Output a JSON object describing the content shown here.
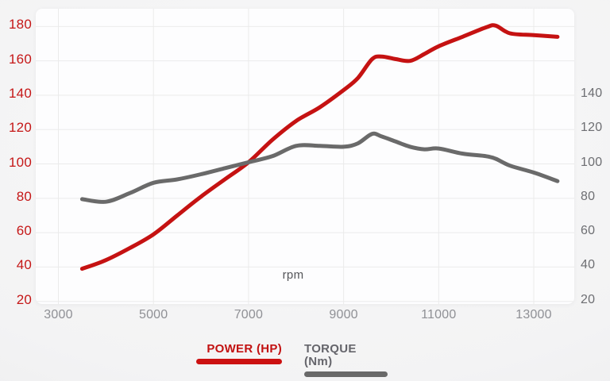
{
  "chart_data": {
    "type": "line",
    "title": "",
    "xlabel": "rpm",
    "grid": true,
    "legend_position": "bottom",
    "x_ticks": [
      3000,
      5000,
      7000,
      9000,
      11000,
      13000
    ],
    "left_axis": {
      "ticks": [
        180,
        160,
        140,
        120,
        100,
        80,
        60,
        40,
        20
      ],
      "color": "#c51717"
    },
    "right_axis": {
      "ticks": [
        140,
        120,
        100,
        80,
        60,
        40,
        20
      ],
      "color": "#6d6e72"
    },
    "xlim": [
      2520,
      13850
    ],
    "ylim": [
      18.5,
      190
    ],
    "x": [
      3500,
      4000,
      4500,
      5000,
      5500,
      6000,
      6500,
      7000,
      7500,
      8000,
      8500,
      9000,
      9300,
      9600,
      9800,
      10100,
      10400,
      10700,
      11000,
      11500,
      12000,
      12200,
      12500,
      13000,
      13500
    ],
    "series": [
      {
        "name": "POWER (HP)",
        "unit": "HP",
        "color": "#c51212",
        "values": [
          39,
          44,
          51,
          59,
          70,
          81,
          91,
          101,
          114,
          125,
          133,
          143,
          150,
          161,
          162.5,
          161,
          160,
          164,
          168.5,
          174,
          179.5,
          180.5,
          176,
          175,
          174
        ]
      },
      {
        "name": "TORQUE (Nm)",
        "unit": "Nm",
        "color": "#6a6a6a",
        "values": [
          79.5,
          78,
          83,
          89,
          91,
          94,
          97.5,
          101,
          104.5,
          110.5,
          110.5,
          110,
          112,
          117.5,
          116,
          113,
          110,
          108.5,
          109,
          106,
          104.5,
          103,
          99,
          95,
          90
        ]
      }
    ]
  },
  "legend": {
    "power_text_color": "#c21111",
    "power_bar_color": "#cc1111",
    "torque_text_color": "#65656b",
    "torque_bar_color": "#696969"
  },
  "colors": {
    "plot_background": "#fdfdfe",
    "gridline": "#ebebeb",
    "x_tick_color": "#8f9095"
  }
}
